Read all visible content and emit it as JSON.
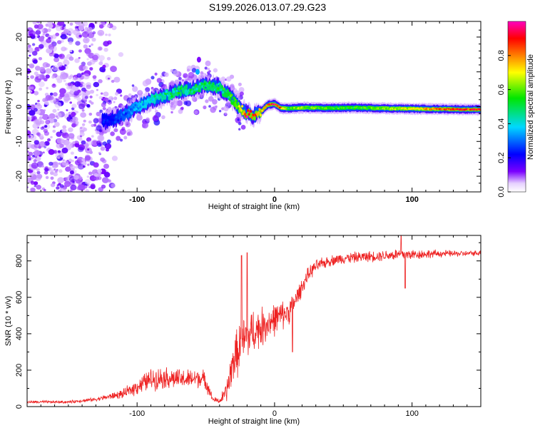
{
  "title": "S199.2026.013.07.29.G23",
  "chart_data": [
    {
      "type": "heatmap",
      "name": "spectrogram",
      "xlabel": "Height of straight line (km)",
      "ylabel": "Frequency (Hz)",
      "xlim": [
        -180,
        150
      ],
      "ylim": [
        -24.5,
        24.5
      ],
      "xticks": [
        -100,
        0,
        100
      ],
      "xtick_labels": [
        "-100",
        "0",
        "100"
      ],
      "yticks": [
        -20,
        -10,
        0,
        10,
        20
      ],
      "ytick_labels": [
        "-20",
        "-10",
        "0",
        "10",
        "20"
      ],
      "colorbar": {
        "label": "Normalized spectral amplitude",
        "range": [
          0,
          1
        ],
        "ticks": [
          0.0,
          0.2,
          0.4,
          0.6,
          0.8
        ],
        "tick_labels": [
          "0.0",
          "0.2",
          "0.4",
          "0.6",
          "0.8"
        ],
        "colormap": [
          "#ffffff",
          "#7a00ff",
          "#0000ff",
          "#00d8ff",
          "#00e600",
          "#ffff00",
          "#ff8000",
          "#ff0000",
          "#ff00c0"
        ]
      },
      "ridge": {
        "x": [
          -120,
          -110,
          -100,
          -90,
          -80,
          -70,
          -60,
          -50,
          -40,
          -30,
          -25,
          -20,
          -15,
          -10,
          -5,
          0,
          5,
          10,
          20,
          40,
          60,
          80,
          100,
          120,
          140,
          150
        ],
        "y": [
          -4,
          -2.5,
          0,
          2,
          3,
          4.5,
          5,
          6,
          5.5,
          2,
          -0.5,
          -2,
          -2.5,
          -1.5,
          0.5,
          0.8,
          -0.5,
          -0.5,
          -0.3,
          -0.4,
          -0.3,
          -0.5,
          -0.6,
          -0.7,
          -0.8,
          -0.8
        ],
        "amplitude": [
          0.25,
          0.3,
          0.35,
          0.4,
          0.42,
          0.45,
          0.45,
          0.45,
          0.45,
          0.5,
          0.6,
          0.9,
          0.85,
          0.7,
          0.8,
          0.95,
          0.75,
          0.5,
          0.55,
          0.5,
          0.5,
          0.55,
          0.6,
          0.8,
          0.85,
          0.8
        ]
      },
      "noise_region": {
        "x_range": [
          -180,
          -110
        ],
        "y_range": [
          -24.5,
          24.5
        ]
      }
    },
    {
      "type": "line",
      "name": "snr",
      "xlabel": "Height of straight line (km)",
      "ylabel": "SNR (10 * v/v)",
      "xlim": [
        -180,
        150
      ],
      "ylim": [
        0,
        940
      ],
      "xticks": [
        -100,
        0,
        100
      ],
      "xtick_labels": [
        "-100",
        "0",
        "100"
      ],
      "yticks": [
        0,
        200,
        400,
        600,
        800
      ],
      "ytick_labels": [
        "0",
        "200",
        "400",
        "600",
        "800"
      ],
      "color": "#ee2222",
      "envelope": {
        "x": [
          -180,
          -150,
          -130,
          -110,
          -100,
          -90,
          -80,
          -70,
          -60,
          -55,
          -50,
          -45,
          -40,
          -35,
          -30,
          -25,
          -20,
          -15,
          -10,
          -5,
          0,
          5,
          10,
          15,
          20,
          25,
          30,
          40,
          50,
          60,
          70,
          80,
          90,
          100,
          120,
          140,
          150
        ],
        "y": [
          25,
          25,
          40,
          70,
          110,
          150,
          160,
          150,
          150,
          160,
          140,
          40,
          30,
          80,
          250,
          330,
          380,
          420,
          430,
          460,
          480,
          500,
          520,
          580,
          660,
          730,
          770,
          800,
          815,
          820,
          825,
          830,
          835,
          835,
          840,
          840,
          845
        ],
        "noise": [
          8,
          8,
          10,
          25,
          45,
          60,
          60,
          55,
          55,
          55,
          50,
          15,
          15,
          60,
          120,
          140,
          140,
          120,
          110,
          100,
          90,
          80,
          70,
          60,
          45,
          40,
          35,
          30,
          30,
          30,
          30,
          30,
          35,
          30,
          20,
          15,
          15
        ]
      },
      "spikes": [
        {
          "x": -20,
          "y": 845
        },
        {
          "x": -24,
          "y": 830
        },
        {
          "x": 92,
          "y": 940
        },
        {
          "x": 95,
          "y": 650
        },
        {
          "x": 13,
          "y": 300
        }
      ]
    }
  ]
}
